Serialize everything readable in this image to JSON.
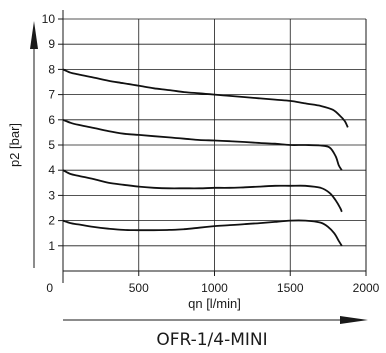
{
  "chart_data": {
    "type": "line",
    "title": "OFR-1/4-MINI",
    "xlabel": "qn [l/min]",
    "ylabel": "p2 [bar]",
    "xlim": [
      0,
      2000
    ],
    "ylim": [
      0,
      10
    ],
    "x_ticks": [
      0,
      500,
      1000,
      1500,
      2000
    ],
    "y_ticks": [
      1,
      2,
      3,
      4,
      5,
      6,
      7,
      8,
      9,
      10
    ],
    "grid": true,
    "series": [
      {
        "values": [
          [
            0,
            8.0
          ],
          [
            50,
            7.87
          ],
          [
            100,
            7.8
          ],
          [
            200,
            7.68
          ],
          [
            300,
            7.55
          ],
          [
            400,
            7.45
          ],
          [
            500,
            7.35
          ],
          [
            600,
            7.25
          ],
          [
            700,
            7.18
          ],
          [
            800,
            7.1
          ],
          [
            900,
            7.05
          ],
          [
            1000,
            7.0
          ],
          [
            1100,
            6.95
          ],
          [
            1200,
            6.9
          ],
          [
            1300,
            6.85
          ],
          [
            1400,
            6.8
          ],
          [
            1500,
            6.75
          ],
          [
            1600,
            6.65
          ],
          [
            1700,
            6.55
          ],
          [
            1780,
            6.4
          ],
          [
            1830,
            6.15
          ],
          [
            1860,
            5.95
          ],
          [
            1880,
            5.7
          ]
        ]
      },
      {
        "values": [
          [
            0,
            6.0
          ],
          [
            50,
            5.88
          ],
          [
            100,
            5.8
          ],
          [
            200,
            5.68
          ],
          [
            300,
            5.55
          ],
          [
            400,
            5.45
          ],
          [
            500,
            5.4
          ],
          [
            600,
            5.35
          ],
          [
            700,
            5.3
          ],
          [
            800,
            5.25
          ],
          [
            900,
            5.2
          ],
          [
            1000,
            5.18
          ],
          [
            1100,
            5.15
          ],
          [
            1200,
            5.12
          ],
          [
            1300,
            5.08
          ],
          [
            1400,
            5.05
          ],
          [
            1500,
            5.0
          ],
          [
            1600,
            5.0
          ],
          [
            1700,
            4.98
          ],
          [
            1760,
            4.9
          ],
          [
            1800,
            4.55
          ],
          [
            1820,
            4.2
          ],
          [
            1840,
            4.0
          ]
        ]
      },
      {
        "values": [
          [
            0,
            4.0
          ],
          [
            50,
            3.85
          ],
          [
            100,
            3.78
          ],
          [
            200,
            3.65
          ],
          [
            300,
            3.5
          ],
          [
            400,
            3.42
          ],
          [
            500,
            3.35
          ],
          [
            600,
            3.3
          ],
          [
            700,
            3.28
          ],
          [
            800,
            3.28
          ],
          [
            900,
            3.28
          ],
          [
            1000,
            3.3
          ],
          [
            1100,
            3.3
          ],
          [
            1200,
            3.32
          ],
          [
            1300,
            3.35
          ],
          [
            1400,
            3.38
          ],
          [
            1500,
            3.38
          ],
          [
            1600,
            3.38
          ],
          [
            1700,
            3.3
          ],
          [
            1760,
            3.1
          ],
          [
            1800,
            2.8
          ],
          [
            1830,
            2.5
          ],
          [
            1840,
            2.35
          ]
        ]
      },
      {
        "values": [
          [
            0,
            2.0
          ],
          [
            50,
            1.9
          ],
          [
            100,
            1.85
          ],
          [
            200,
            1.75
          ],
          [
            300,
            1.68
          ],
          [
            400,
            1.63
          ],
          [
            500,
            1.62
          ],
          [
            600,
            1.62
          ],
          [
            700,
            1.63
          ],
          [
            800,
            1.66
          ],
          [
            900,
            1.72
          ],
          [
            1000,
            1.78
          ],
          [
            1100,
            1.82
          ],
          [
            1200,
            1.86
          ],
          [
            1300,
            1.9
          ],
          [
            1400,
            1.95
          ],
          [
            1500,
            2.0
          ],
          [
            1600,
            2.0
          ],
          [
            1700,
            1.92
          ],
          [
            1750,
            1.75
          ],
          [
            1790,
            1.5
          ],
          [
            1820,
            1.2
          ],
          [
            1840,
            1.0
          ]
        ]
      }
    ]
  }
}
